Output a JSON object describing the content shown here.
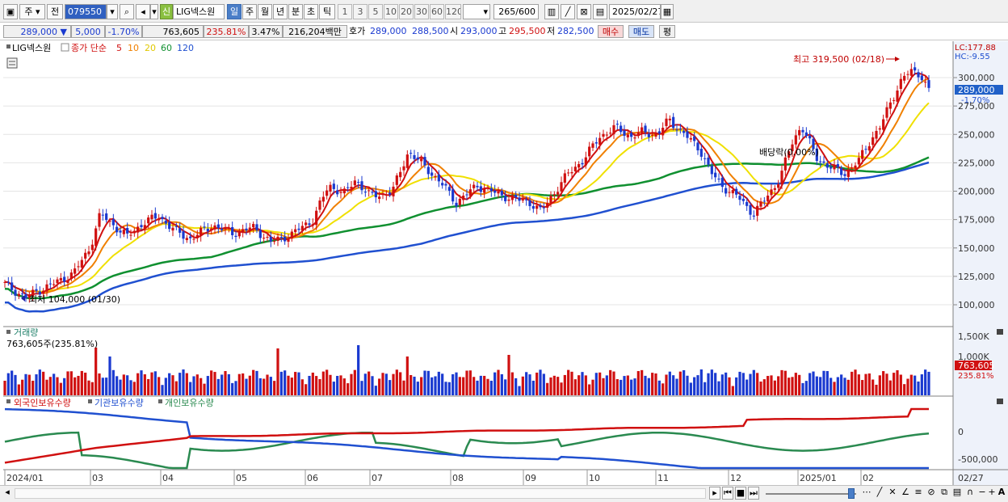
{
  "toolbar": {
    "period": "주",
    "mode": "전",
    "code": "079550",
    "badge": "신",
    "name": "LIG넥스원",
    "intervals": [
      "일",
      "주",
      "월",
      "년",
      "분",
      "초",
      "틱"
    ],
    "numbers": [
      "1",
      "3",
      "5",
      "10",
      "20",
      "30",
      "60",
      "120"
    ],
    "count_value": "265",
    "count_total": "/600",
    "date": "2025/02/27"
  },
  "quote": {
    "price": "289,000",
    "change": "5,000",
    "change_pct": "-1.70%",
    "volume": "763,605",
    "volume_pct": "235.81%",
    "turnover_pct": "3.47%",
    "amount": "216,204백만",
    "ask_label": "호가",
    "ask": "289,000",
    "bid": "288,500",
    "open_label": "시",
    "open": "293,000",
    "high_label": "고",
    "high": "295,500",
    "low_label": "저",
    "low": "282,500",
    "buy_label": "매수",
    "sell_label": "매도",
    "avg_label": "평"
  },
  "price_panel": {
    "stock_label": "LIG넥스원",
    "ma_label": "종가 단순",
    "ma_periods": [
      "5",
      "10",
      "20",
      "60",
      "120"
    ],
    "ma_colors": [
      "#d01010",
      "#f08000",
      "#f0e000",
      "#109030",
      "#2050d0"
    ],
    "lc": "LC:177.88",
    "hc": "HC:-9.55",
    "high_note": "최고 319,500 (02/18)",
    "low_note": "최저 104,000 (01/30)",
    "dividend_note": "배당락(0.00%)",
    "current_price": "289,000",
    "current_change": "-1.70%",
    "y_ticks": [
      "300,000",
      "275,000",
      "250,000",
      "225,000",
      "200,000",
      "175,000",
      "150,000",
      "125,000",
      "100,000"
    ]
  },
  "volume_panel": {
    "title": "거래량",
    "value_note": "763,605주(235.81%)",
    "y_ticks": [
      "1,500K",
      "1,000K"
    ],
    "current": "763,605",
    "current_pct": "235.81%"
  },
  "holdings_panel": {
    "series": [
      "외국인보유수량",
      "기관보유수량",
      "개인보유수량"
    ],
    "colors": [
      "#d01010",
      "#2050d0",
      "#2a8a50"
    ],
    "y_ticks": [
      "0",
      "-500,000"
    ]
  },
  "x_axis": [
    "2024/01",
    "03",
    "04",
    "05",
    "06",
    "07",
    "08",
    "09",
    "10",
    "11",
    "12",
    "2025/01",
    "02"
  ],
  "x_axis_end": "02/27"
}
